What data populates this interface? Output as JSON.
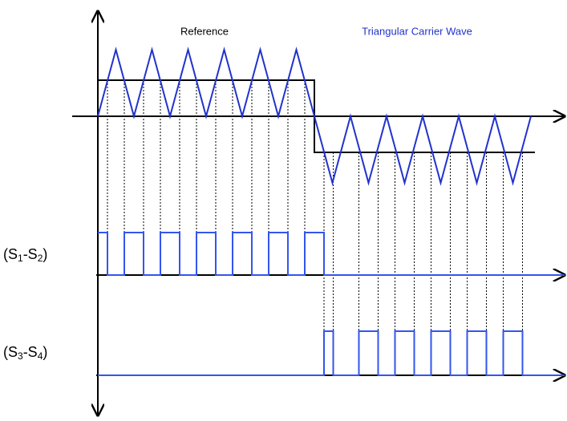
{
  "annotations": {
    "reference": "Reference",
    "carrier": "Triangular Carrier Wave"
  },
  "signals": [
    {
      "label": [
        "(S",
        "1",
        "-S",
        "2",
        ")"
      ]
    },
    {
      "label": [
        "(S",
        "3",
        "-S",
        "4",
        ")"
      ]
    }
  ]
}
